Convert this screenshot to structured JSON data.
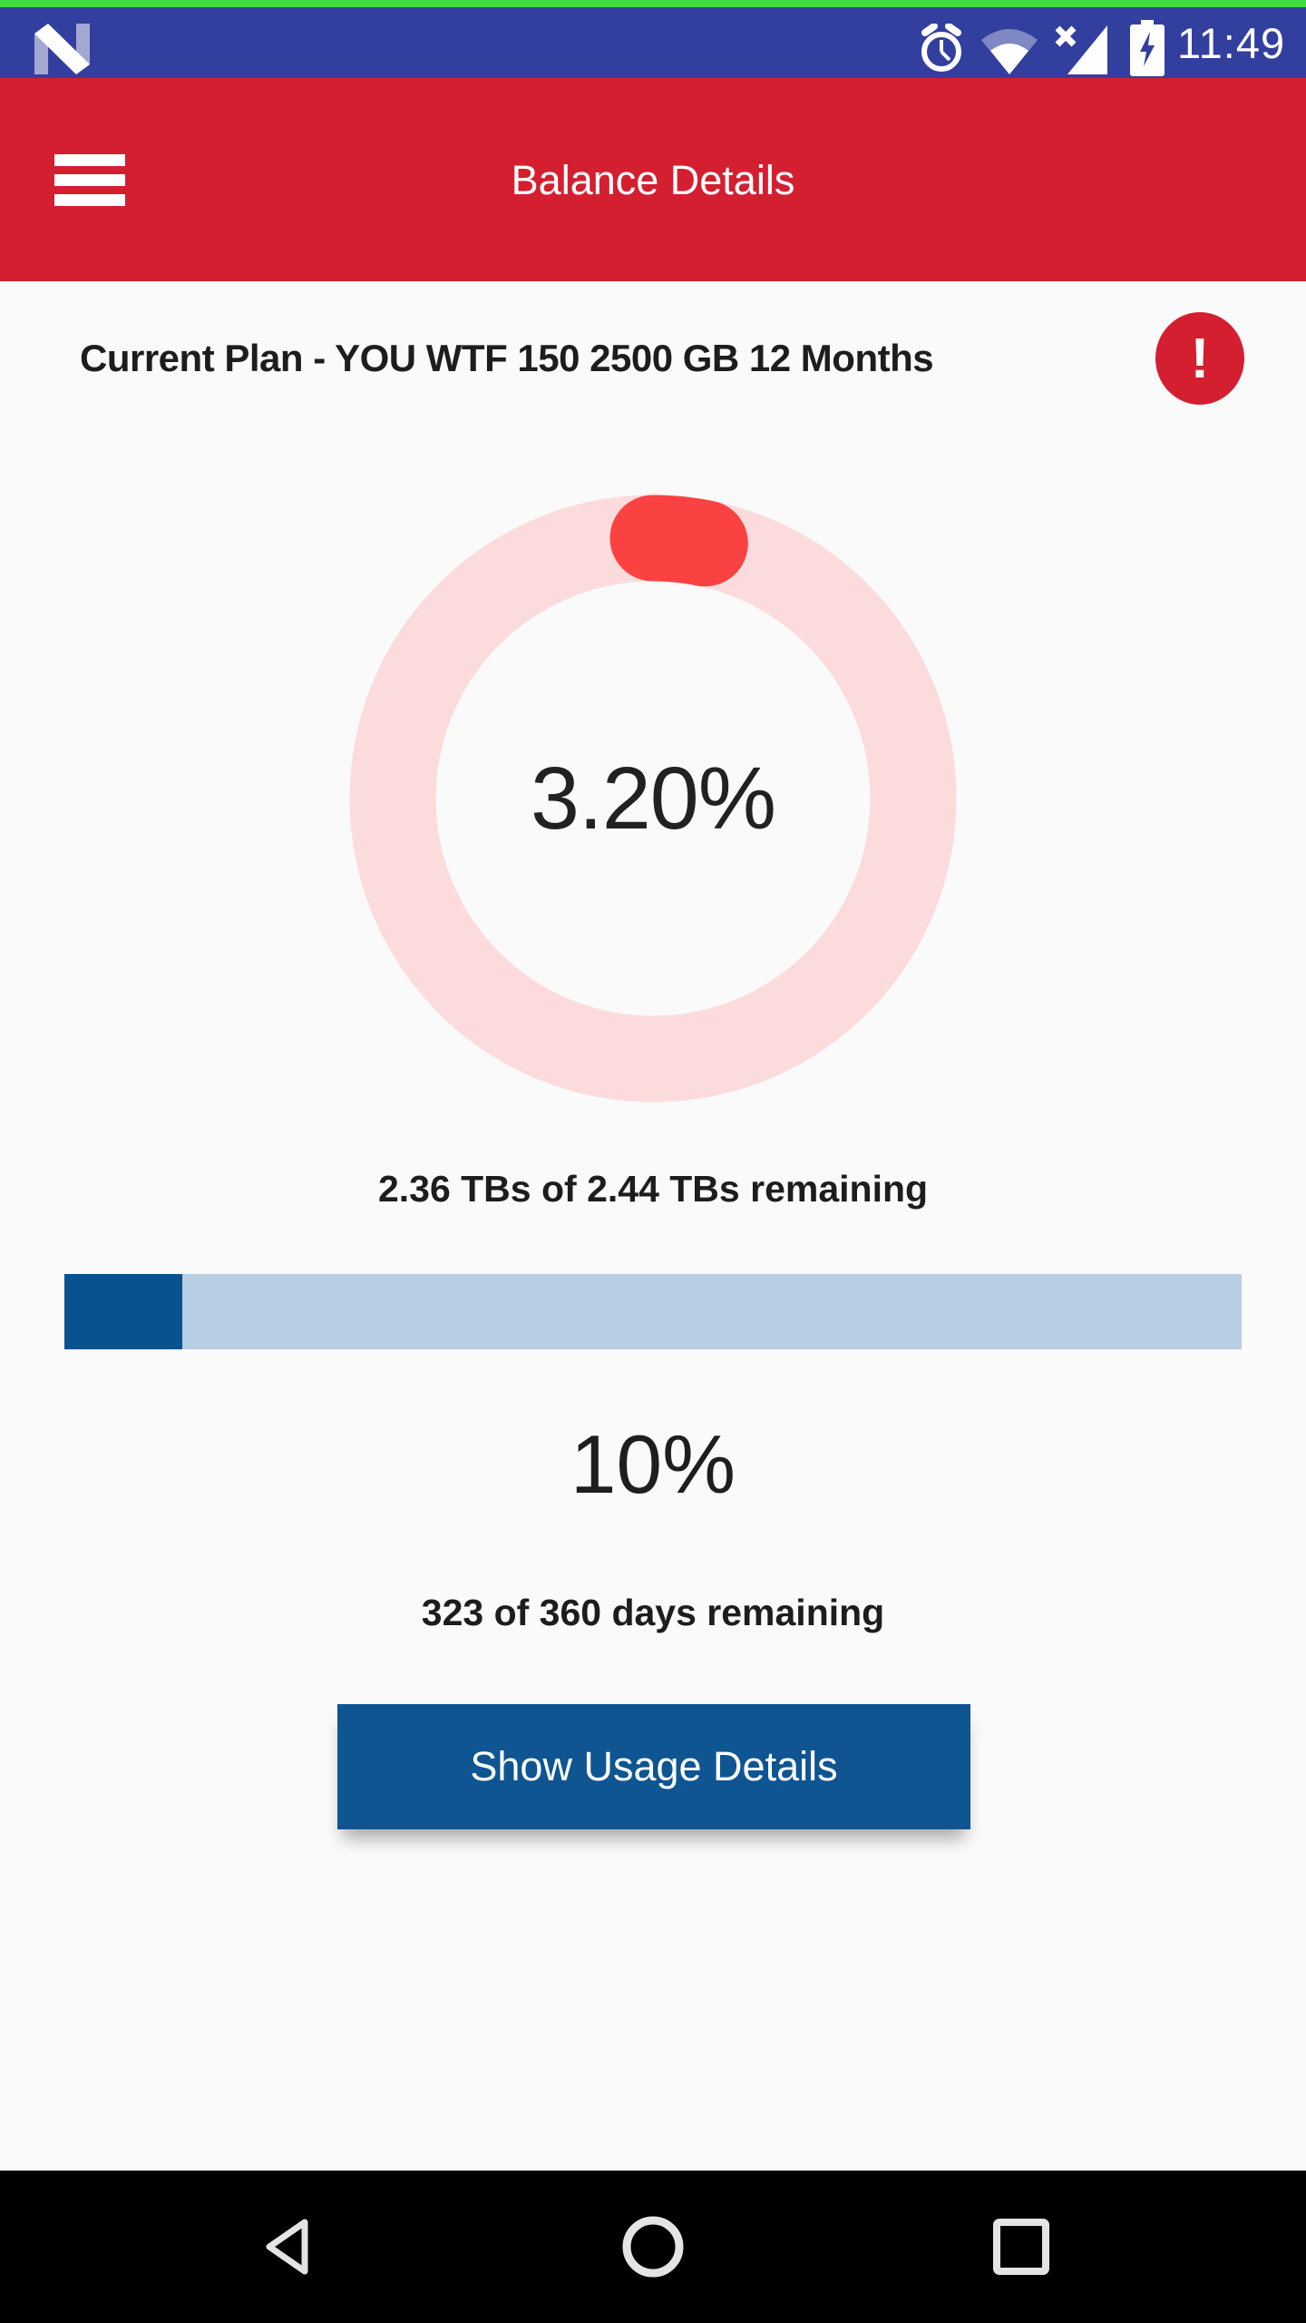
{
  "status_bar": {
    "time": "11:49",
    "icons": {
      "left": "android-n-logo",
      "right": [
        "alarm-clock",
        "wifi-partial",
        "cell-signal-x",
        "battery-charging"
      ]
    },
    "colors": {
      "bg": "#333F9E",
      "recording_strip": "#3EDC40"
    }
  },
  "app_bar": {
    "title": "Balance Details",
    "bg": "#D41F30"
  },
  "plan": {
    "title": "Current Plan - YOU WTF 150 2500 GB 12 Months",
    "alert_glyph": "!"
  },
  "data_ring": {
    "percent": 3.2,
    "percent_label": "3.20%",
    "caption": "2.36 TBs of 2.44 TBs remaining",
    "track_color": "#FCDBDD",
    "fill_color": "#FA4242"
  },
  "days_bar": {
    "percent": 10,
    "percent_label": "10%",
    "caption": "323 of 360 days remaining",
    "track_color": "#B7CDE2",
    "fill_color": "#07528F"
  },
  "actions": {
    "show_usage": "Show Usage Details",
    "bg": "#0E5592"
  },
  "nav_bar": {
    "items": [
      "back",
      "home",
      "recents"
    ]
  }
}
